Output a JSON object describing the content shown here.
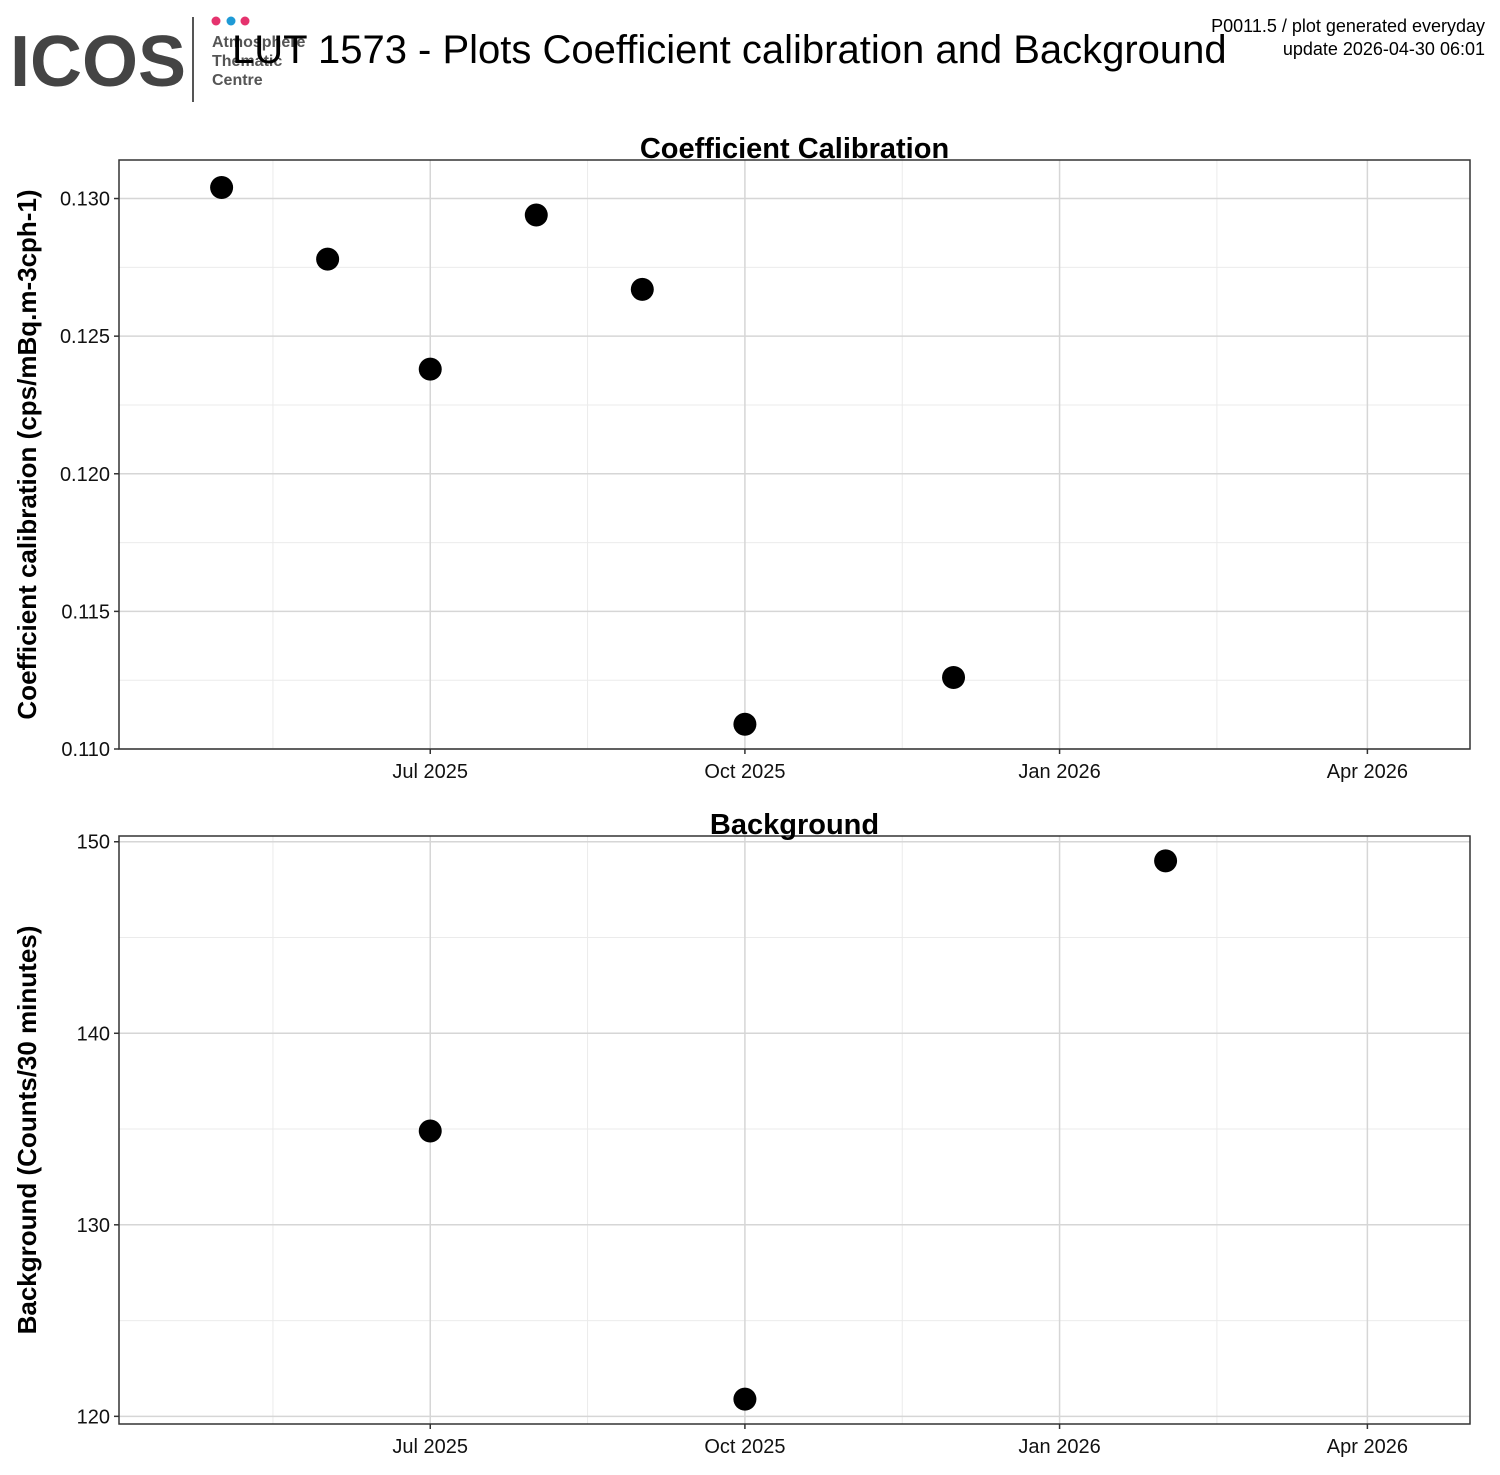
{
  "header": {
    "logo": "ICOS",
    "logo_text": [
      "Atmosphere",
      "Thematic",
      "Centre"
    ],
    "title": "LUT 1573 - Plots Coefficient calibration and Background",
    "info": [
      "P0011.5 / plot generated everyday",
      "update  2026-04-30 06:01"
    ]
  },
  "chart_data": [
    {
      "type": "scatter",
      "title": "Coefficient Calibration",
      "y_label": "Coefficient calibration (cps/mBq.m-3cph-1)",
      "x": [
        "2025-05",
        "2025-06",
        "2025-07",
        "2025-08",
        "2025-09",
        "2025-10",
        "2025-12"
      ],
      "values": [
        0.1304,
        0.1278,
        0.1238,
        0.1294,
        0.1267,
        0.1109,
        0.1126
      ],
      "color": "#000000",
      "xlim": [
        "2025-04",
        "2026-05"
      ],
      "xticks": [
        {
          "value": "2025-07",
          "label": "Jul 2025"
        },
        {
          "value": "2025-10",
          "label": "Oct 2025"
        },
        {
          "value": "2026-01",
          "label": "Jan 2026"
        },
        {
          "value": "2026-04",
          "label": "Apr 2026"
        }
      ],
      "ylim": [
        0.11,
        0.1314
      ],
      "yticks": [
        {
          "value": 0.11,
          "label": "0.110"
        },
        0.115,
        {
          "value": 0.12,
          "label": "0.120"
        },
        0.125,
        {
          "value": 0.13,
          "label": "0.130"
        }
      ],
      "grid": true
    },
    {
      "type": "scatter",
      "title": "Background",
      "y_label": "Background (Counts/30 minutes)",
      "x": [
        "2025-07",
        "2025-10",
        "2026-02"
      ],
      "values": [
        134.9,
        120.9,
        149
      ],
      "color": "#000000",
      "xlim": [
        "2025-04",
        "2026-05"
      ],
      "xticks": [
        {
          "value": "2025-07",
          "label": "Jul 2025"
        },
        {
          "value": "2025-10",
          "label": "Oct 2025"
        },
        {
          "value": "2026-01",
          "label": "Jan 2026"
        },
        {
          "value": "2026-04",
          "label": "Apr 2026"
        }
      ],
      "ylim": [
        119.6,
        150.3
      ],
      "yticks": [
        120,
        130,
        140,
        150
      ],
      "grid": true
    }
  ]
}
